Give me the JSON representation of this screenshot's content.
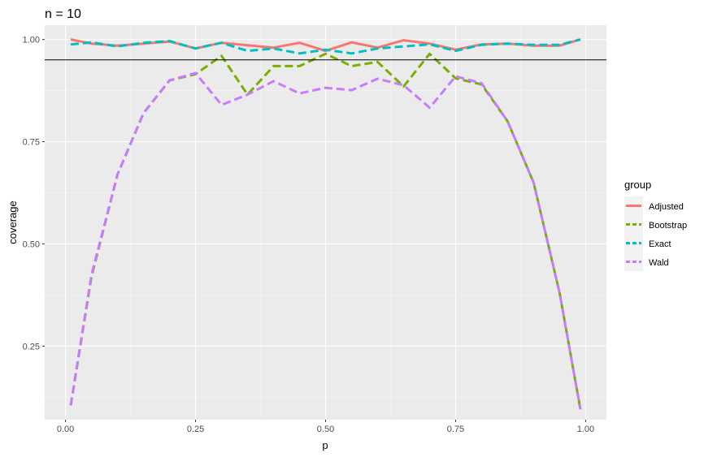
{
  "chart_data": {
    "type": "line",
    "title": "n = 10",
    "xlabel": "p",
    "ylabel": "coverage",
    "xlim": [
      -0.04,
      1.04
    ],
    "ylim": [
      0.07,
      1.035
    ],
    "x_ticks": [
      0.0,
      0.25,
      0.5,
      0.75,
      1.0
    ],
    "x_tick_labels": [
      "0.00",
      "0.25",
      "0.50",
      "0.75",
      "1.00"
    ],
    "y_ticks": [
      0.25,
      0.5,
      0.75,
      1.0
    ],
    "y_tick_labels": [
      "0.25",
      "0.50",
      "0.75",
      "1.00"
    ],
    "reference_line": 0.95,
    "grid": true,
    "legend_title": "group",
    "legend_position": "right",
    "x": [
      0.01,
      0.05,
      0.1,
      0.15,
      0.2,
      0.25,
      0.3,
      0.35,
      0.4,
      0.45,
      0.5,
      0.55,
      0.6,
      0.65,
      0.7,
      0.75,
      0.8,
      0.85,
      0.9,
      0.95,
      0.99
    ],
    "series": [
      {
        "name": "Adjusted",
        "color": "#F8766D",
        "dash": "solid",
        "values": [
          1.0,
          0.99,
          0.985,
          0.99,
          0.995,
          0.978,
          0.992,
          0.986,
          0.98,
          0.992,
          0.972,
          0.993,
          0.98,
          0.998,
          0.99,
          0.975,
          0.988,
          0.99,
          0.985,
          0.985,
          1.0
        ]
      },
      {
        "name": "Bootstrap",
        "color": "#7CAE00",
        "dash": "dashed",
        "values": [
          0.105,
          0.42,
          0.67,
          0.82,
          0.9,
          0.915,
          0.96,
          0.865,
          0.935,
          0.935,
          0.965,
          0.935,
          0.945,
          0.885,
          0.965,
          0.905,
          0.89,
          0.8,
          0.65,
          0.38,
          0.095
        ]
      },
      {
        "name": "Exact",
        "color": "#00BFC4",
        "dash": "dashed",
        "values": [
          0.988,
          0.993,
          0.983,
          0.992,
          0.996,
          0.978,
          0.992,
          0.972,
          0.978,
          0.966,
          0.975,
          0.966,
          0.978,
          0.983,
          0.988,
          0.972,
          0.987,
          0.99,
          0.987,
          0.987,
          1.0
        ]
      },
      {
        "name": "Wald",
        "color": "#C77CFF",
        "dash": "dashed",
        "values": [
          0.105,
          0.425,
          0.67,
          0.82,
          0.9,
          0.918,
          0.84,
          0.865,
          0.898,
          0.868,
          0.882,
          0.876,
          0.904,
          0.888,
          0.833,
          0.91,
          0.893,
          0.8,
          0.65,
          0.38,
          0.095
        ]
      }
    ]
  }
}
